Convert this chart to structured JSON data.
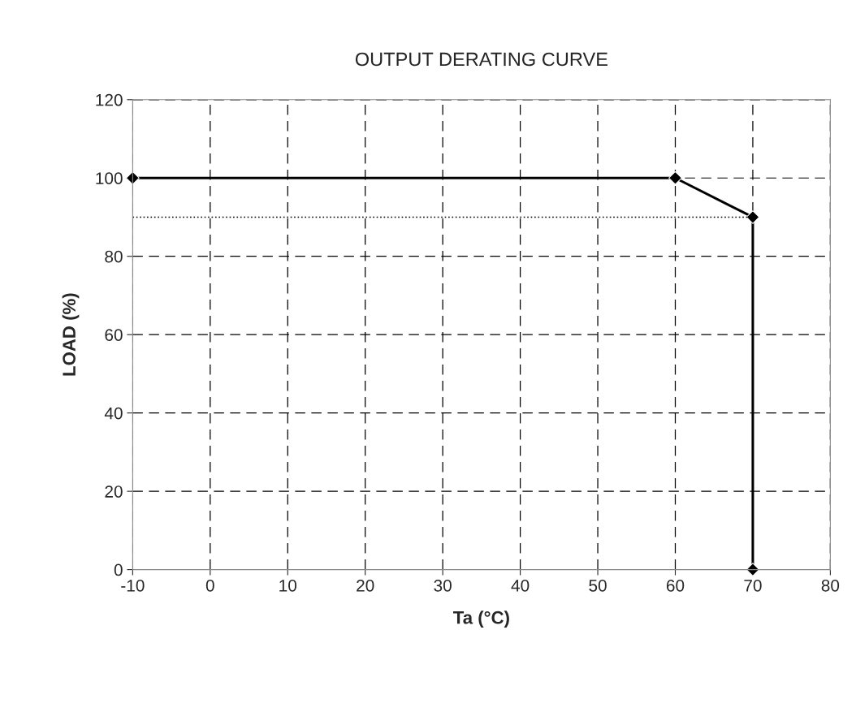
{
  "chart_data": {
    "type": "line",
    "title": "OUTPUT DERATING CURVE",
    "xlabel": "Ta (°C)",
    "ylabel": "LOAD (%)",
    "series": [
      {
        "color": "#000000",
        "x": [
          -10,
          60,
          70,
          70
        ],
        "values": [
          100,
          100,
          90,
          0
        ],
        "marker": "diamond",
        "line_style": "solid"
      },
      {
        "color": "#000000",
        "x": [
          -10,
          70
        ],
        "values": [
          90,
          90
        ],
        "marker": "none",
        "line_style": "dotted"
      }
    ],
    "xlim": [
      -10,
      80
    ],
    "xticks": [
      -10,
      0,
      10,
      20,
      30,
      40,
      50,
      60,
      70,
      80
    ],
    "ylim": [
      0,
      120
    ],
    "yticks": [
      0,
      20,
      40,
      60,
      80,
      100,
      120
    ],
    "grid": true,
    "legend": false
  }
}
